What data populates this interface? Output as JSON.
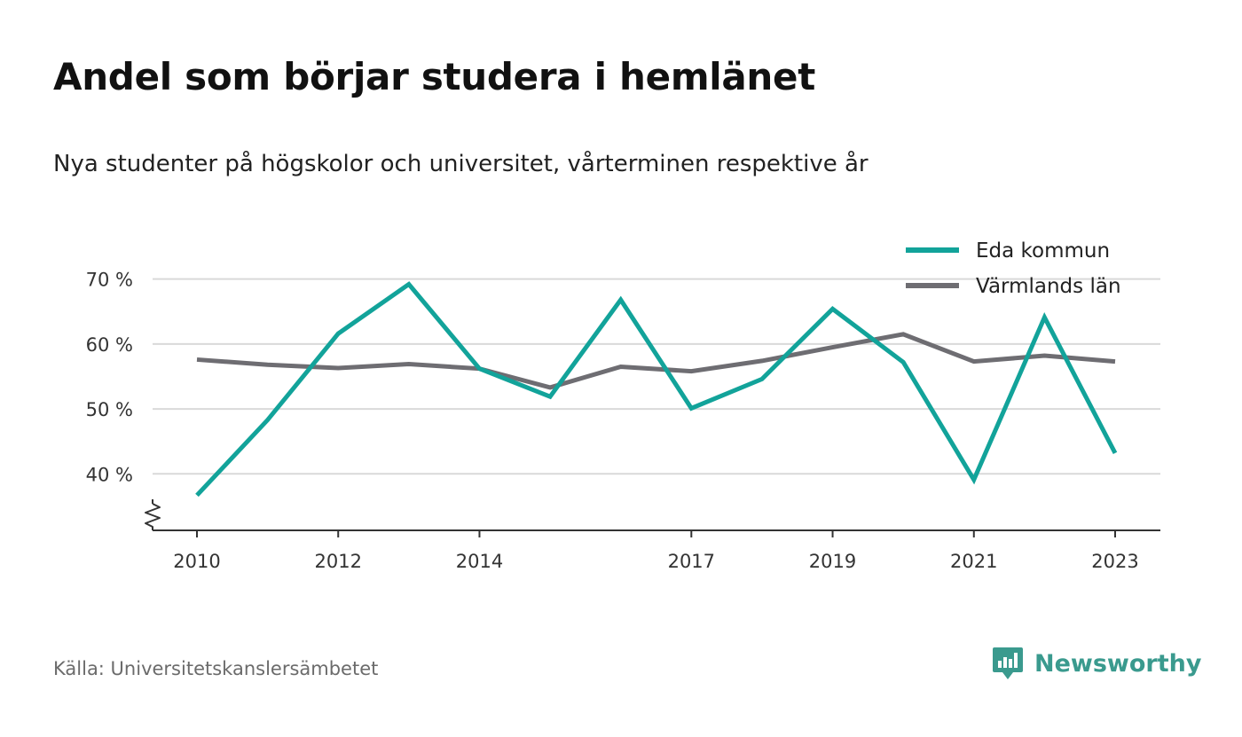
{
  "header": {
    "title": "Andel som börjar studera i hemlänet",
    "subtitle": "Nya studenter på högskolor och universitet, vårterminen respektive år"
  },
  "footer": {
    "source": "Källa: Universitetskanslersämbetet",
    "brand": "Newsworthy"
  },
  "colors": {
    "eda": "#12a39a",
    "varmland": "#6e6d72",
    "grid": "#d9d9d9",
    "axis": "#333333",
    "brand": "#3a9a8e"
  },
  "chart_data": {
    "type": "line",
    "title": "Andel som börjar studera i hemlänet",
    "subtitle": "Nya studenter på högskolor och universitet, vårterminen respektive år",
    "x": [
      2010,
      2011,
      2012,
      2013,
      2014,
      2015,
      2016,
      2017,
      2018,
      2019,
      2020,
      2021,
      2022,
      2023
    ],
    "x_tick_labels": [
      "2010",
      "2012",
      "2014",
      "2017",
      "2019",
      "2021",
      "2023"
    ],
    "y_ticks": [
      40,
      50,
      60,
      70
    ],
    "y_tick_labels": [
      "40 %",
      "50 %",
      "60 %",
      "70 %"
    ],
    "ylim": [
      31.3,
      72
    ],
    "y_axis_broken": true,
    "grid": true,
    "legend_position": "top-right",
    "series": [
      {
        "name": "Eda kommun",
        "color": "#12a39a",
        "values": [
          36.7,
          48.3,
          61.6,
          69.2,
          56.2,
          51.9,
          66.8,
          50.1,
          54.6,
          65.4,
          57.2,
          39.1,
          64.1,
          43.2
        ]
      },
      {
        "name": "Värmlands län",
        "color": "#6e6d72",
        "values": [
          57.6,
          56.8,
          56.3,
          56.9,
          56.2,
          53.3,
          56.5,
          55.8,
          57.4,
          59.5,
          61.5,
          57.3,
          58.2,
          57.3
        ]
      }
    ]
  }
}
